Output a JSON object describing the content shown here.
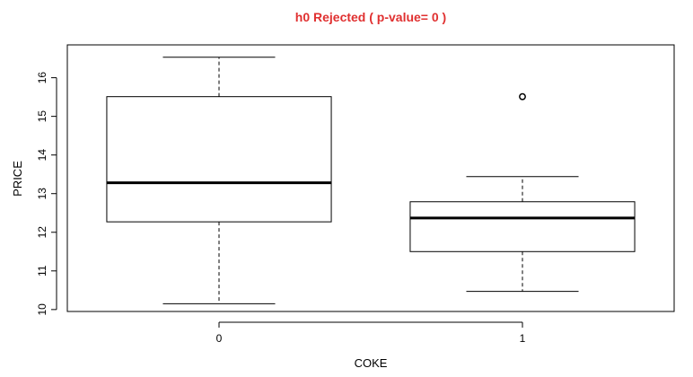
{
  "chart_data": {
    "type": "boxplot",
    "title": "h0 Rejected ( p-value= 0 )",
    "title_color": "#e03030",
    "xlabel": "COKE",
    "ylabel": "PRICE",
    "categories": [
      "0",
      "1"
    ],
    "ylim": [
      9.95,
      16.85
    ],
    "yticks": [
      10,
      11,
      12,
      13,
      14,
      15,
      16
    ],
    "boxes": [
      {
        "category": "0",
        "whisker_low": 10.15,
        "q1": 12.27,
        "median": 13.28,
        "q3": 15.51,
        "whisker_high": 16.53,
        "outliers": []
      },
      {
        "category": "1",
        "whisker_low": 10.47,
        "q1": 11.5,
        "median": 12.37,
        "q3": 12.79,
        "whisker_high": 13.44,
        "outliers": [
          15.51
        ]
      }
    ],
    "grid": false,
    "box_color": "#000000",
    "fill_color": "#ffffff"
  }
}
